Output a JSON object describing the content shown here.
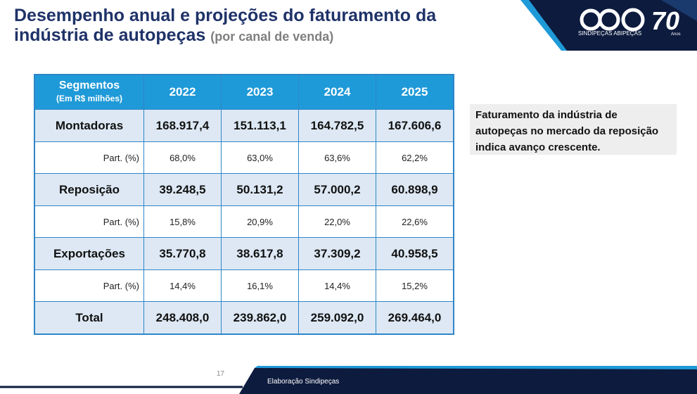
{
  "header": {
    "title_line1": "Desempenho anual e projeções do faturamento da",
    "title_line2": "indústria de autopeças",
    "subtitle": "(por canal de venda)"
  },
  "logo": {
    "text": "SINDIPEÇAS ABIPEÇAS",
    "number": "70",
    "anos": "Anos"
  },
  "table": {
    "corner": [
      "Segmentos",
      "(Em R$ milhões)"
    ],
    "columns": [
      "2022",
      "2023",
      "2024",
      "2025"
    ],
    "rows": [
      {
        "label": "Montadoras",
        "values": [
          "168.917,4",
          "151.113,1",
          "164.782,5",
          "167.606,6"
        ]
      },
      {
        "label": "Part. (%)",
        "values": [
          "68,0%",
          "63,0%",
          "63,6%",
          "62,2%"
        ]
      },
      {
        "label": "Reposição",
        "values": [
          "39.248,5",
          "50.131,2",
          "57.000,2",
          "60.898,9"
        ]
      },
      {
        "label": "Part. (%)",
        "values": [
          "15,8%",
          "20,9%",
          "22,0%",
          "22,6%"
        ]
      },
      {
        "label": "Exportações",
        "values": [
          "35.770,8",
          "38.617,8",
          "37.309,2",
          "40.958,5"
        ]
      },
      {
        "label": "Part. (%)",
        "values": [
          "14,4%",
          "16,1%",
          "14,4%",
          "15,2%"
        ]
      },
      {
        "label": "Total",
        "values": [
          "248.408,0",
          "239.862,0",
          "259.092,0",
          "269.464,0"
        ]
      }
    ]
  },
  "note": {
    "lines": [
      "Faturamento da indústria de",
      "autopeças no mercado da reposição",
      "indica avanço crescente."
    ]
  },
  "footer": {
    "page": "17",
    "source": "Elaboração Sindipeças"
  }
}
